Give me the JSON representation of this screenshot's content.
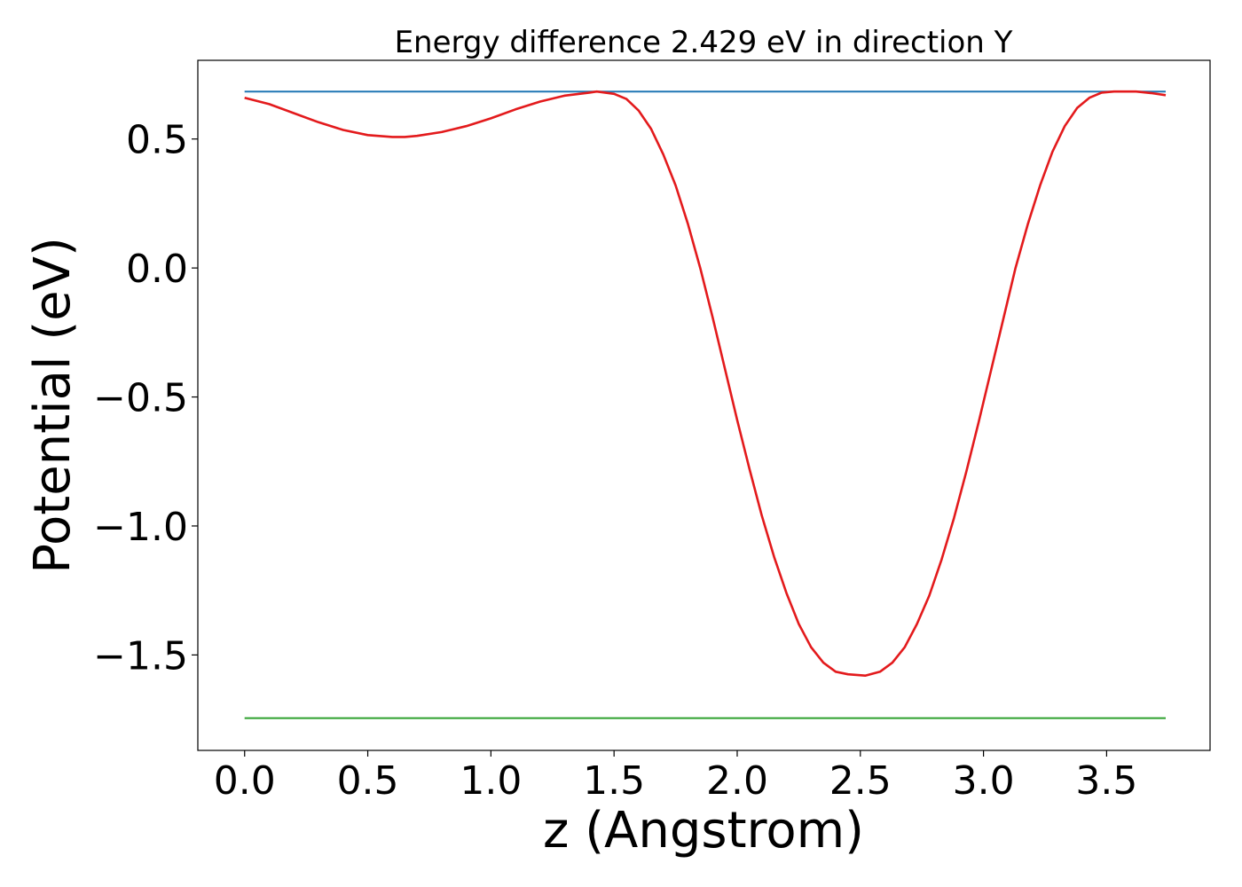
{
  "chart_data": {
    "type": "line",
    "title": "Energy difference 2.429 eV in direction Y",
    "xlabel": "z (Angstrom)",
    "ylabel": "Potential (eV)",
    "xlim": [
      -0.19,
      3.92
    ],
    "ylim": [
      -1.87,
      0.805
    ],
    "xticks": [
      {
        "value": 0.0,
        "label": "0.0"
      },
      {
        "value": 0.5,
        "label": "0.5"
      },
      {
        "value": 1.0,
        "label": "1.0"
      },
      {
        "value": 1.5,
        "label": "1.5"
      },
      {
        "value": 2.0,
        "label": "2.0"
      },
      {
        "value": 2.5,
        "label": "2.5"
      },
      {
        "value": 3.0,
        "label": "3.0"
      },
      {
        "value": 3.5,
        "label": "3.5"
      }
    ],
    "yticks": [
      {
        "value": 0.5,
        "label": "0.5"
      },
      {
        "value": 0.0,
        "label": "0.0"
      },
      {
        "value": -0.5,
        "label": "−0.5"
      },
      {
        "value": -1.0,
        "label": "−1.0"
      },
      {
        "value": -1.5,
        "label": "−1.5"
      }
    ],
    "grid": false,
    "series": [
      {
        "color": "#1f77b4",
        "x": [
          0.0,
          3.74
        ],
        "y": [
          0.684,
          0.684
        ]
      },
      {
        "color": "#2ca02c",
        "x": [
          0.0,
          3.74
        ],
        "y": [
          -1.745,
          -1.745
        ]
      },
      {
        "color": "#e31a1c",
        "x": [
          0.0,
          0.1,
          0.2,
          0.3,
          0.4,
          0.5,
          0.6,
          0.65,
          0.7,
          0.8,
          0.9,
          1.0,
          1.1,
          1.2,
          1.3,
          1.4,
          1.43,
          1.5,
          1.55,
          1.6,
          1.65,
          1.7,
          1.75,
          1.8,
          1.85,
          1.9,
          1.95,
          2.0,
          2.05,
          2.1,
          2.15,
          2.2,
          2.25,
          2.3,
          2.35,
          2.4,
          2.45,
          2.52,
          2.58,
          2.63,
          2.68,
          2.73,
          2.78,
          2.83,
          2.88,
          2.93,
          2.98,
          3.03,
          3.08,
          3.13,
          3.18,
          3.23,
          3.28,
          3.33,
          3.38,
          3.43,
          3.48,
          3.53,
          3.58,
          3.62,
          3.68,
          3.74
        ],
        "y": [
          0.66,
          0.635,
          0.6,
          0.565,
          0.535,
          0.515,
          0.508,
          0.508,
          0.512,
          0.527,
          0.55,
          0.58,
          0.615,
          0.645,
          0.668,
          0.68,
          0.684,
          0.675,
          0.655,
          0.61,
          0.54,
          0.44,
          0.32,
          0.17,
          0.0,
          -0.19,
          -0.39,
          -0.59,
          -0.78,
          -0.96,
          -1.12,
          -1.26,
          -1.38,
          -1.47,
          -1.53,
          -1.565,
          -1.575,
          -1.58,
          -1.565,
          -1.53,
          -1.47,
          -1.38,
          -1.27,
          -1.13,
          -0.97,
          -0.79,
          -0.6,
          -0.4,
          -0.2,
          0.0,
          0.17,
          0.32,
          0.45,
          0.55,
          0.62,
          0.66,
          0.68,
          0.684,
          0.684,
          0.684,
          0.678,
          0.67
        ]
      }
    ]
  }
}
